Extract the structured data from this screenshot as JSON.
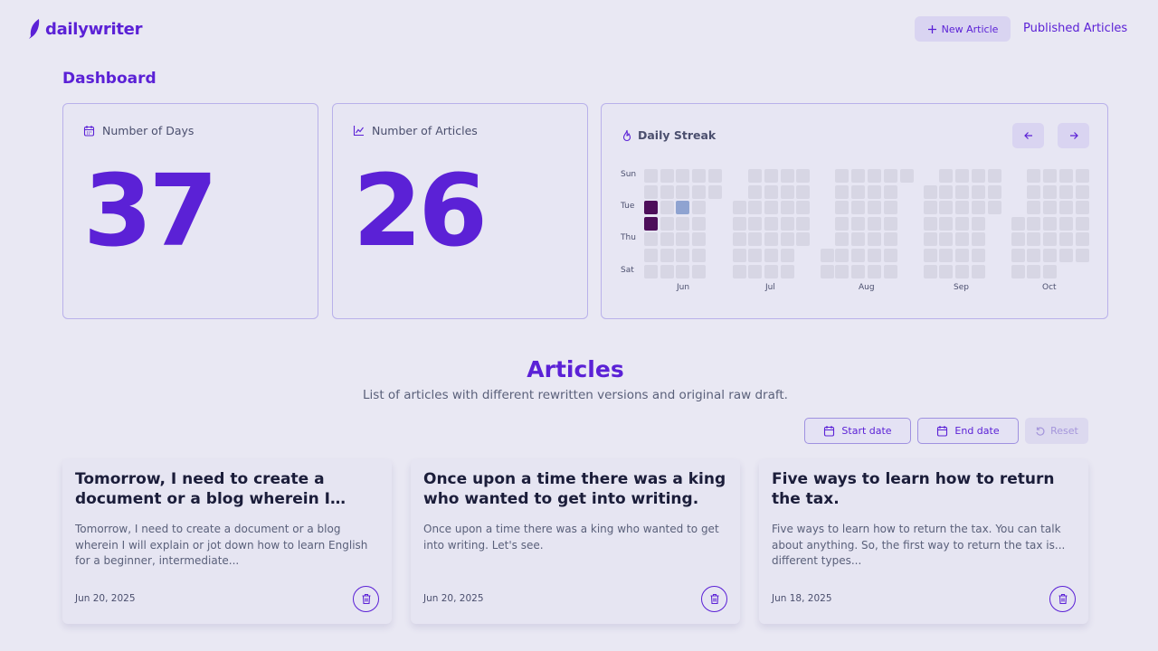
{
  "app": {
    "name": "dailywriter",
    "brand_color": "#5b21d6"
  },
  "header": {
    "new_article_label": "New Article",
    "published_label": "Published Articles"
  },
  "dashboard": {
    "title": "Dashboard",
    "days": {
      "label": "Number of Days",
      "value": "37",
      "icon": "calendar-icon"
    },
    "articles": {
      "label": "Number of Articles",
      "value": "26",
      "icon": "line-chart-icon"
    },
    "streak": {
      "label": "Daily Streak",
      "icon": "flame-icon",
      "day_labels": [
        "Sun",
        "Tue",
        "Thu",
        "Sat"
      ],
      "months": [
        "Jun",
        "Jul",
        "Aug",
        "Sep",
        "Oct"
      ],
      "filled_color": "#4d0e5a",
      "today_color": "#8fa3d1",
      "empty_color": "#d7d6e4"
    }
  },
  "articles_section": {
    "title": "Articles",
    "subtitle": "List of articles with different rewritten versions and original raw draft.",
    "start_date_label": "Start date",
    "end_date_label": "End date",
    "reset_label": "Reset"
  },
  "articles": [
    {
      "title": "Tomorrow, I need to create a document or a blog wherein I will...",
      "excerpt": "Tomorrow, I need to create a document or a blog wherein I will explain or jot down how to learn English for a beginner, intermediate...",
      "date": "Jun 20, 2025"
    },
    {
      "title": "Once upon a time there was a king who wanted to get into writing.",
      "excerpt": "Once upon a time there was a king who wanted to get into writing. Let's see.",
      "date": "Jun 20, 2025"
    },
    {
      "title": "Five ways to learn how to return the tax.",
      "excerpt": "Five ways to learn how to return the tax. You can talk about anything. So, the first way to return the tax is... different types...",
      "date": "Jun 18, 2025"
    }
  ]
}
